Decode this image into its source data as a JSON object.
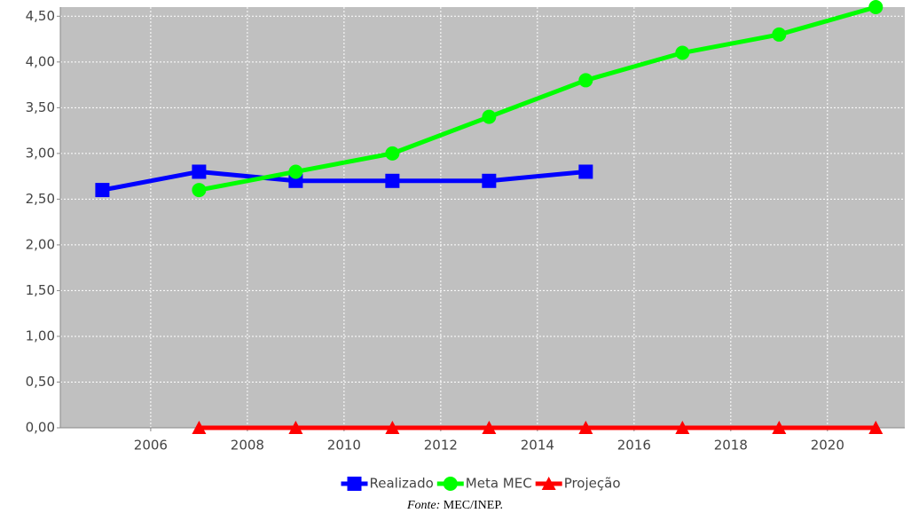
{
  "chart_data": {
    "type": "line",
    "x": [
      2005,
      2007,
      2009,
      2011,
      2013,
      2015,
      2017,
      2019,
      2021
    ],
    "series": [
      {
        "name": "Realizado",
        "color": "#0000ff",
        "marker": "square",
        "values": [
          2.6,
          2.8,
          2.7,
          2.7,
          2.7,
          2.8,
          null,
          null,
          null
        ]
      },
      {
        "name": "Meta MEC",
        "color": "#00ff00",
        "marker": "circle",
        "values": [
          null,
          2.6,
          2.8,
          3.0,
          3.4,
          3.8,
          4.1,
          4.3,
          4.6
        ]
      },
      {
        "name": "Projeção",
        "color": "#ff0000",
        "marker": "triangle",
        "values": [
          null,
          0,
          0,
          0,
          0,
          0,
          0,
          0,
          0
        ]
      }
    ],
    "xlim": [
      2004.13,
      2021.6
    ],
    "xticks": [
      2006,
      2008,
      2010,
      2012,
      2014,
      2016,
      2018,
      2020
    ],
    "ylim": [
      0,
      4.6
    ],
    "yticks": [
      {
        "value": 0,
        "label": "0,00"
      },
      {
        "value": 0.5,
        "label": "0,50"
      },
      {
        "value": 1,
        "label": "1,00"
      },
      {
        "value": 1.5,
        "label": "1,50"
      },
      {
        "value": 2,
        "label": "2,00"
      },
      {
        "value": 2.5,
        "label": "2,50"
      },
      {
        "value": 3,
        "label": "3,00"
      },
      {
        "value": 3.5,
        "label": "3,50"
      },
      {
        "value": 4,
        "label": "4,00"
      },
      {
        "value": 4.5,
        "label": "4,50"
      }
    ],
    "grid": true,
    "legend": "bottom",
    "source": {
      "prefix": "Fonte:",
      "text": "MEC/INEP."
    }
  }
}
